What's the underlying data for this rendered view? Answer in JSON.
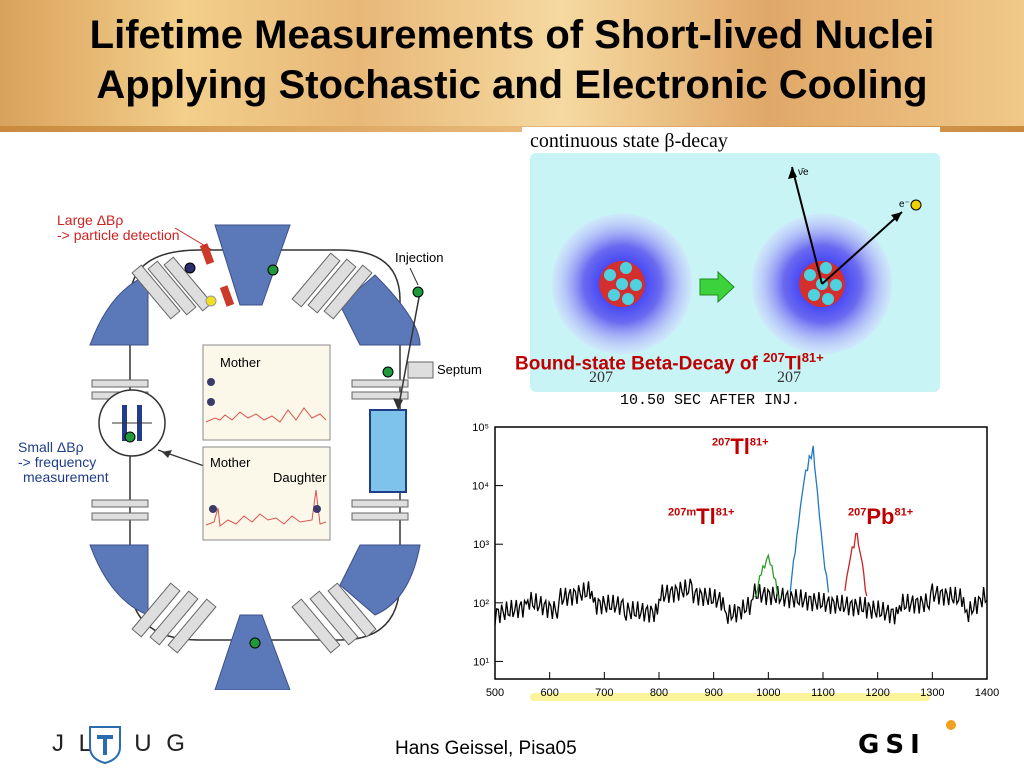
{
  "title": {
    "line1": "Lifetime Measurements of Short-lived Nuclei",
    "line2": "Applying Stochastic and Electronic Cooling"
  },
  "ring": {
    "large_label_line1": "Large ΔBρ",
    "large_label_line2": "-> particle detection",
    "small_label_line1": "Small ΔBρ",
    "small_label_line2": "-> frequency",
    "small_label_line3": "measurement",
    "injection_label": "Injection",
    "septum_label": "Septum",
    "mother_label_top": "Mother",
    "mother_label_bottom": "Mother",
    "daughter_label": "Daughter"
  },
  "decay_diagram": {
    "title": "continuous state β-decay",
    "neutrino_label": "ν̄e",
    "electron_label": "e⁻",
    "left_nucleus_label": "207",
    "right_nucleus_label": "207"
  },
  "bound_state": {
    "text": "Bound-state Beta-Decay of ",
    "mass": "207",
    "element": "Tl",
    "charge": "81+"
  },
  "spectrum": {
    "header_text": "10.50 SEC AFTER INJ.",
    "peak_tl": {
      "mass": "207",
      "element": "Tl",
      "charge": "81+"
    },
    "peak_tlm": {
      "mass": "207m",
      "element": "Tl",
      "charge": "81+"
    },
    "peak_pb": {
      "mass": "207",
      "element": "Pb",
      "charge": "81+"
    }
  },
  "chart_data": {
    "type": "line",
    "title": "10.50 SEC AFTER INJ.",
    "xlabel": "",
    "ylabel": "",
    "xlim": [
      500,
      1400
    ],
    "ylim_log10": [
      0.7,
      5
    ],
    "x_ticks": [
      "500",
      "600",
      "700",
      "800",
      "900",
      "1000",
      "1100",
      "1200",
      "1300",
      "1400"
    ],
    "y_ticks": [
      "10¹",
      "10²",
      "10³",
      "10⁴",
      "10⁵"
    ],
    "series": [
      {
        "color": "#000000",
        "x": [
          500,
          560,
          620,
          680,
          740,
          800,
          860,
          920,
          975,
          1180,
          1240,
          1300,
          1360,
          1400
        ],
        "y": [
          90,
          120,
          80,
          110,
          100,
          95,
          130,
          90,
          110,
          120,
          90,
          100,
          80,
          110
        ]
      },
      {
        "color": "#2a9d2a",
        "x": [
          975,
          990,
          1000,
          1010,
          1020
        ],
        "y": [
          100,
          400,
          700,
          350,
          120
        ]
      },
      {
        "color": "#1f78c8",
        "x": [
          1040,
          1055,
          1065,
          1075,
          1082,
          1090,
          1100,
          1110
        ],
        "y": [
          150,
          2000,
          12000,
          30000,
          45000,
          8000,
          800,
          150
        ]
      },
      {
        "color": "#cc2222",
        "x": [
          1140,
          1150,
          1160,
          1165,
          1172,
          1180
        ],
        "y": [
          150,
          600,
          1400,
          1200,
          400,
          130
        ]
      }
    ]
  },
  "footer": {
    "author": "Hans Geissel,  Pisa05",
    "left_logo": "J L T U G",
    "right_logo": "GSI"
  },
  "colors": {
    "accent_red": "#c00000",
    "magnet_blue": "#5b78b8",
    "peak_green": "#2a9d2a",
    "peak_blue": "#1f78c8",
    "peak_red": "#cc2222"
  }
}
